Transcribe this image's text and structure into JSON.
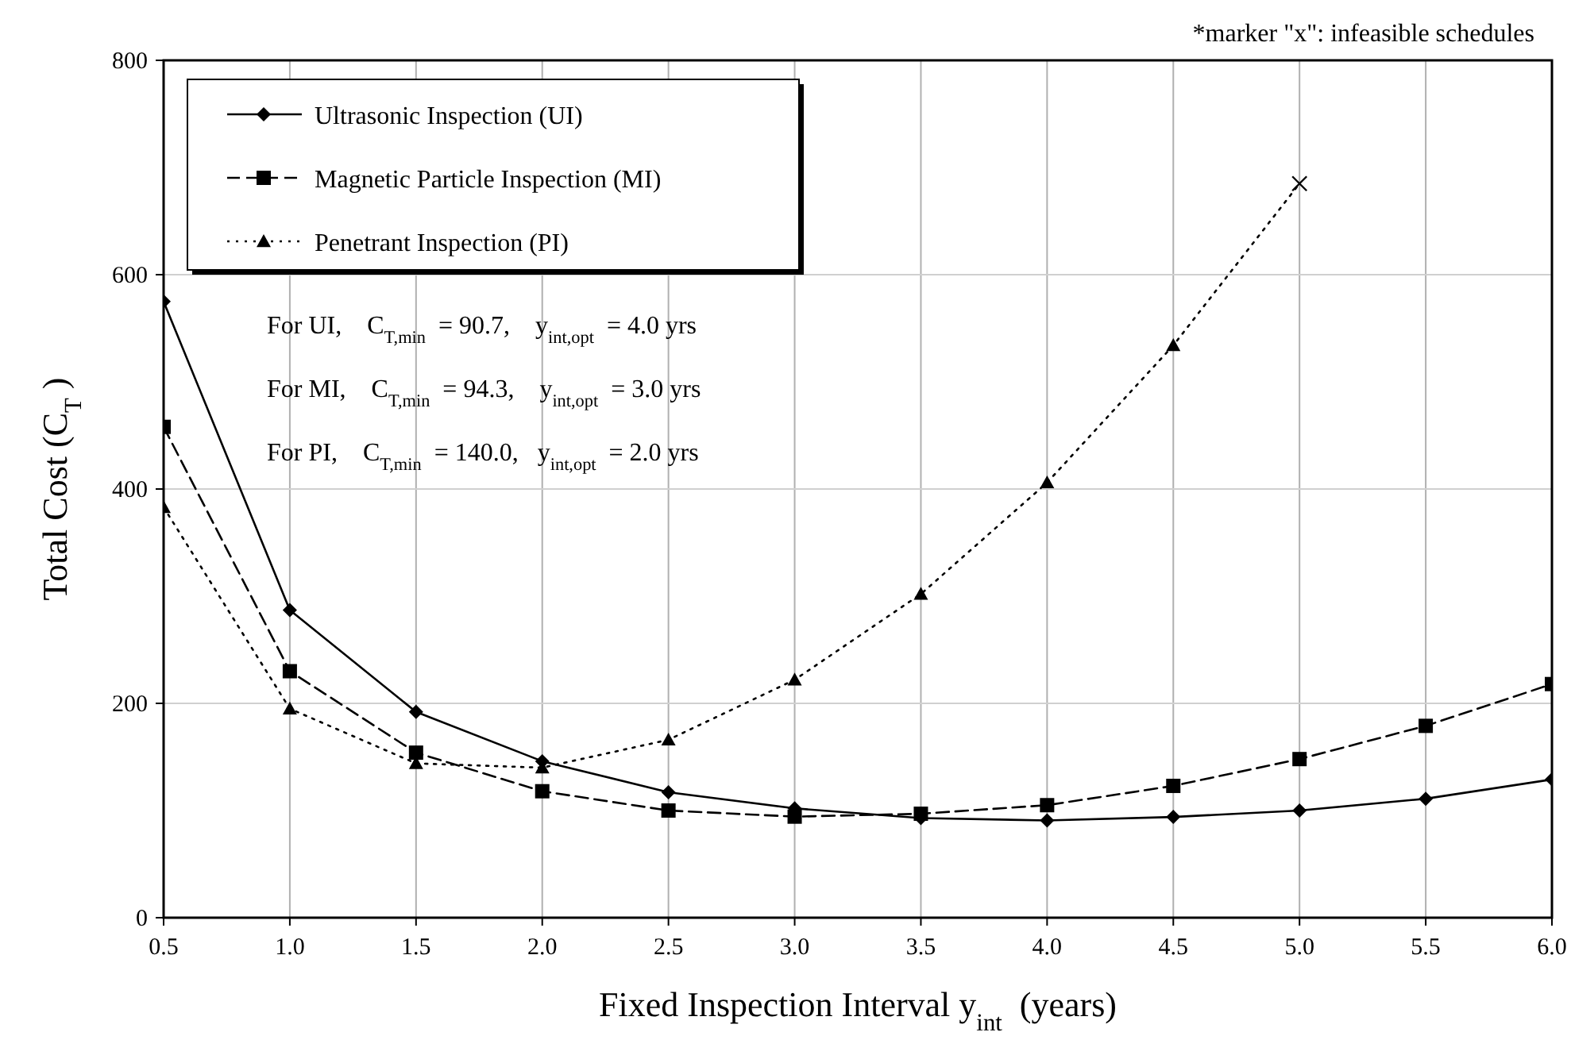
{
  "chart_data": {
    "type": "line",
    "xlabel": "Fixed Inspection Interval y$_{int}$ (years)",
    "ylabel": "Total Cost (C$_{T}$)",
    "x": [
      0.5,
      1.0,
      1.5,
      2.0,
      2.5,
      3.0,
      3.5,
      4.0,
      4.5,
      5.0,
      5.5,
      6.0
    ],
    "xlim": [
      0.5,
      6.0
    ],
    "xticks": [
      {
        "value": 0.5,
        "label": "0.5"
      },
      {
        "value": 1,
        "label": "1.0"
      },
      {
        "value": 1.5,
        "label": "1.5"
      },
      {
        "value": 2,
        "label": "2.0"
      },
      {
        "value": 2.5,
        "label": "2.5"
      },
      {
        "value": 3,
        "label": "3.0"
      },
      {
        "value": 3.5,
        "label": "3.5"
      },
      {
        "value": 4,
        "label": "4.0"
      },
      {
        "value": 4.5,
        "label": "4.5"
      },
      {
        "value": 5,
        "label": "5.0"
      },
      {
        "value": 5.5,
        "label": "5.5"
      },
      {
        "value": 6,
        "label": "6.0"
      }
    ],
    "ylim": [
      0,
      800
    ],
    "yticks": [
      0,
      200,
      400,
      600,
      800
    ],
    "grid": true,
    "legend": "top left",
    "series": [
      {
        "name": "Ultrasonic Inspection (UI)",
        "color": "#000000",
        "marker": "diamond",
        "line_style": "solid",
        "values": [
          575,
          287,
          192,
          146,
          117,
          102,
          93,
          90.7,
          94,
          100,
          111,
          129
        ]
      },
      {
        "name": "Magnetic Particle Inspection (MI)",
        "color": "#000000",
        "marker": "square",
        "line_style": "dashed",
        "values": [
          458,
          230,
          154,
          118,
          100,
          94.3,
          97,
          105,
          123,
          148,
          179,
          218
        ]
      },
      {
        "name": "Penetrant Inspection (PI)",
        "color": "#000000",
        "marker": "triangle",
        "line_style": "dotted",
        "values": [
          383,
          195,
          144,
          140,
          166,
          222,
          302,
          406,
          534,
          685,
          null,
          null
        ]
      },
      {
        "type": "scatter",
        "color": "#000000",
        "marker": "cross",
        "x": [
          5.0
        ],
        "values": [
          685
        ]
      }
    ],
    "annotations": [
      "For UI,    C$_{T,min}$ = 90.7,    y$_{int,opt}$ = 4.0 yrs",
      "For MI,    C$_{T,min}$ = 94.3,    y$_{int,opt}$ = 3.0 yrs",
      "For PI,    C$_{T,min}$ = 140.0,   y$_{int,opt}$ = 2.0 yrs",
      "*marker \"x\": infeasible schedules"
    ]
  }
}
